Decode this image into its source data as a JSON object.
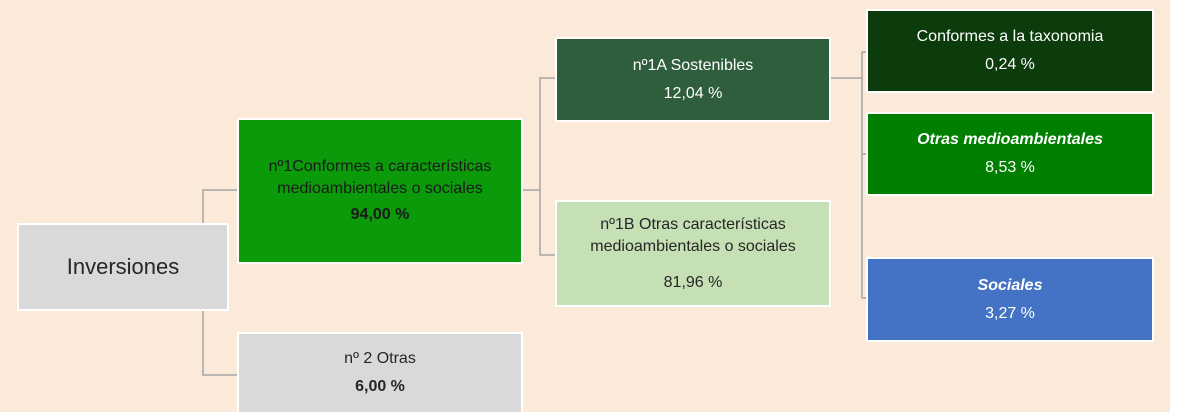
{
  "nodes": [
    {
      "lines": [
        "Inversiones"
      ]
    },
    {
      "lines": [
        "nº1Conformes a características",
        "medioambientales o  sociales"
      ],
      "value": "94,00 %"
    },
    {
      "lines": [
        "nº 2 Otras"
      ],
      "value": "6,00 %"
    },
    {
      "lines": [
        "nº1A Sostenibles"
      ],
      "value": "12,04 %"
    },
    {
      "lines": [
        "nº1B Otras características",
        "medioambientales o sociales"
      ],
      "value": "81,96 %"
    },
    {
      "lines": [
        "Conformes a la taxonomia"
      ],
      "value": "0,24 %"
    },
    {
      "lines": [
        "Otras medioambientales"
      ],
      "value": "8,53 %"
    },
    {
      "lines": [
        "Sociales"
      ],
      "value": "3,27 %"
    }
  ]
}
